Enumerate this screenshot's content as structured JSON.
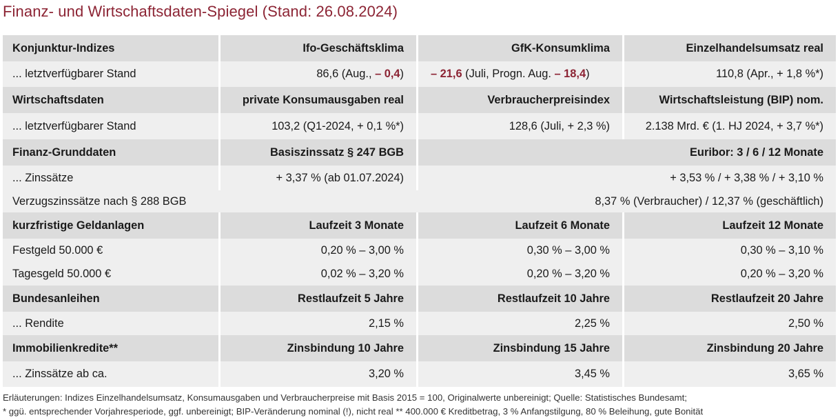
{
  "title": "Finanz- und Wirtschaftsdaten-Spiegel (Stand: 26.08.2024)",
  "colors": {
    "accent": "#8c2434",
    "header_bg": "#dcdcdc",
    "row_bg": "#efefef"
  },
  "rows": {
    "konj_h": {
      "c0": "Konjunktur-Indizes",
      "c1": "Ifo-Geschäftsklima",
      "c2": "GfK-Konsumklima",
      "c3": "Einzelhandelsumsatz real"
    },
    "konj_v": {
      "c0": "... letztverfügbarer Stand",
      "c1_a": "86,6 (Aug., ",
      "c1_b": "– 0,4",
      "c1_c": ")",
      "c2_a": "– 21,6",
      "c2_b": " (Juli, Progn. Aug. ",
      "c2_c": "– 18,4",
      "c2_d": ")",
      "c3": "110,8 (Apr., + 1,8 %*)"
    },
    "wirt_h": {
      "c0": "Wirtschaftsdaten",
      "c1": "private Konsumausgaben real",
      "c2": "Verbraucherpreisindex",
      "c3": "Wirtschaftsleistung (BIP) nom."
    },
    "wirt_v": {
      "c0": "... letztverfügbarer Stand",
      "c1": "103,2 (Q1-2024, + 0,1 %*)",
      "c2": "128,6 (Juli, + 2,3 %)",
      "c3": "2.138 Mrd. € (1. HJ 2024, + 3,7 %*)"
    },
    "fin_h": {
      "c0": "Finanz-Grunddaten",
      "c1": "Basiszinssatz § 247 BGB",
      "c23": "Euribor: 3 / 6 / 12 Monate"
    },
    "fin_v": {
      "c0": "... Zinssätze",
      "c1": "+ 3,37 % (ab 01.07.2024)",
      "c23": "+ 3,53 % / + 3,38 % / + 3,10 %"
    },
    "verz": {
      "c0": "Verzugszinssätze nach § 288 BGB",
      "c123": "8,37 % (Verbraucher) / 12,37 % (geschäftlich)"
    },
    "geld_h": {
      "c0": "kurzfristige Geldanlagen",
      "c1": "Laufzeit 3 Monate",
      "c2": "Laufzeit 6 Monate",
      "c3": "Laufzeit 12 Monate"
    },
    "fest": {
      "c0": "Festgeld 50.000 €",
      "c1": "0,20 % – 3,00 %",
      "c2": "0,30 % – 3,00 %",
      "c3": "0,30 % – 3,10 %"
    },
    "tages": {
      "c0": "Tagesgeld 50.000 €",
      "c1": "0,02 % – 3,20 %",
      "c2": "0,20 % – 3,20 %",
      "c3": "0,20 % – 3,20 %"
    },
    "bund_h": {
      "c0": "Bundesanleihen",
      "c1": "Restlaufzeit 5 Jahre",
      "c2": "Restlaufzeit 10 Jahre",
      "c3": "Restlaufzeit 20 Jahre"
    },
    "bund_v": {
      "c0": "... Rendite",
      "c1": "2,15 %",
      "c2": "2,25 %",
      "c3": "2,50 %"
    },
    "immo_h": {
      "c0": "Immobilienkredite**",
      "c1": "Zinsbindung 10 Jahre",
      "c2": "Zinsbindung 15 Jahre",
      "c3": "Zinsbindung 20 Jahre"
    },
    "immo_v": {
      "c0": "... Zinssätze ab ca.",
      "c1": "3,20 %",
      "c2": "3,45 %",
      "c3": "3,65 %"
    }
  },
  "notes": {
    "line1": "Erläuterungen: Indizes Einzelhandelsumsatz, Konsumausgaben und Verbraucherpreise mit Basis 2015 = 100, Originalwerte unbereinigt; Quelle: Statistisches Bundesamt;",
    "line2": "* ggü. entsprechender Vorjahresperiode, ggf. unbereinigt; BIP-Veränderung nominal (!), nicht real  ** 400.000 € Kreditbetrag, 3 % Anfangstilgung, 80 % Beleihung, gute Bonität"
  }
}
